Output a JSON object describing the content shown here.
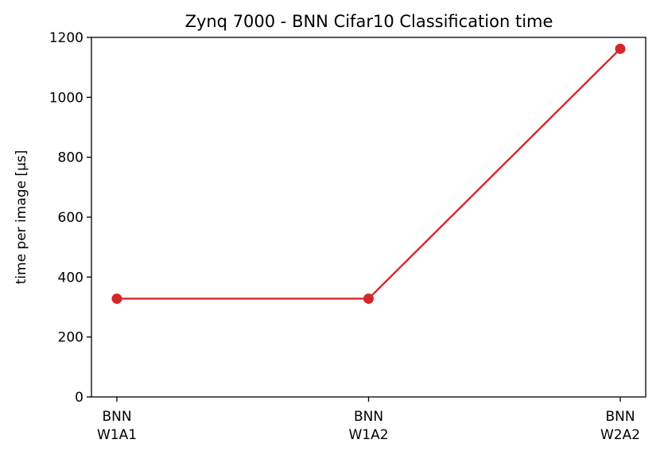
{
  "chart_data": {
    "type": "line",
    "title": "Zynq 7000 - BNN Cifar10 Classification time",
    "xlabel": "",
    "ylabel": "time per image [μs]",
    "categories": [
      [
        "BNN",
        "W1A1"
      ],
      [
        "BNN",
        "W1A2"
      ],
      [
        "BNN",
        "W2A2"
      ]
    ],
    "series": [
      {
        "values": [
          328,
          328,
          1162
        ],
        "color": "#d62728",
        "marker": "circle"
      }
    ],
    "ylim": [
      0,
      1200
    ],
    "yticks": [
      0,
      200,
      400,
      600,
      800,
      1000,
      1200
    ],
    "grid": false,
    "legend": "none"
  }
}
